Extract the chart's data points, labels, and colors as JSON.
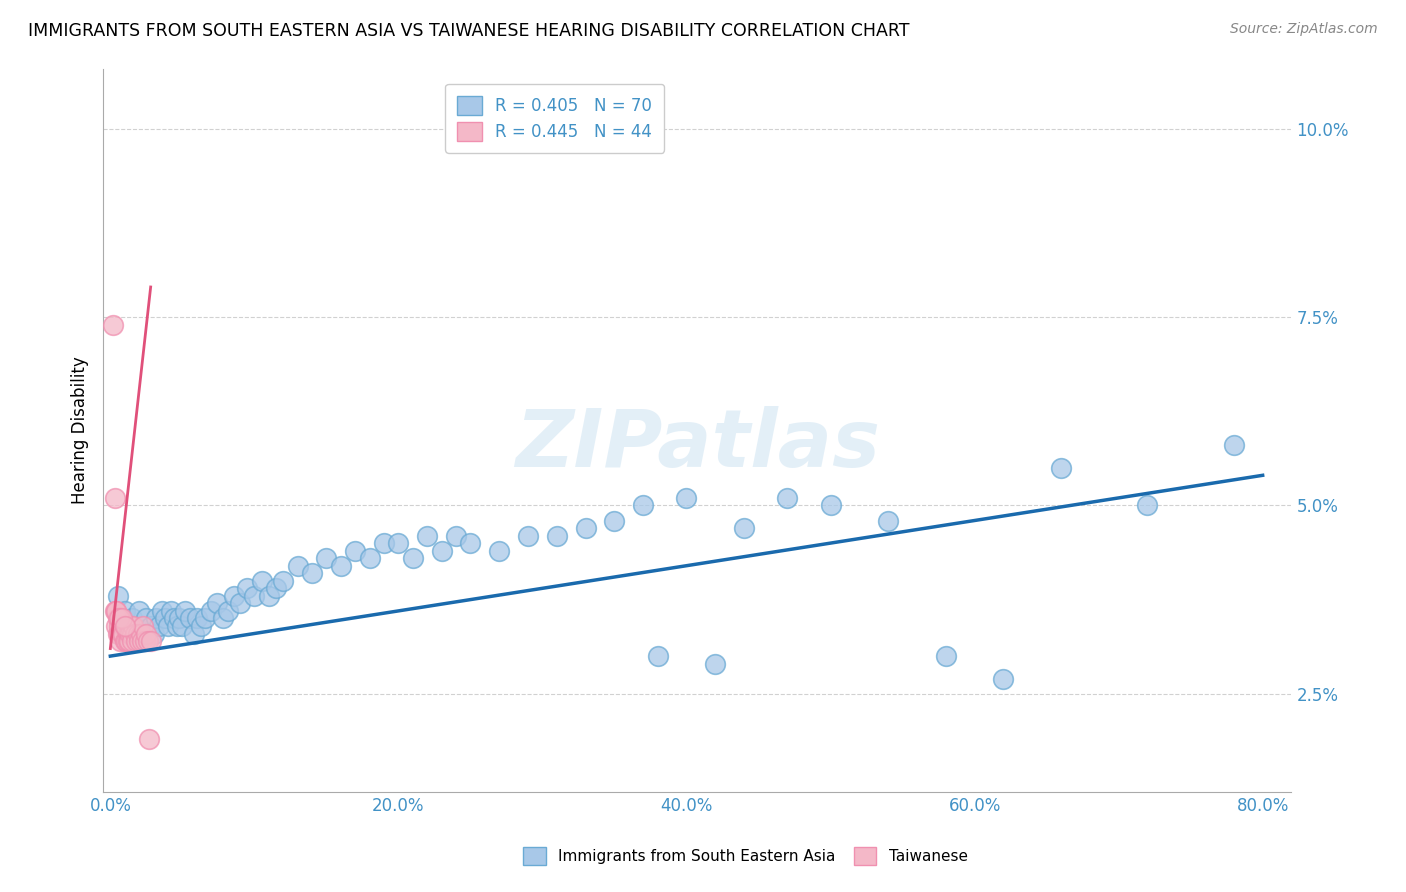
{
  "title": "IMMIGRANTS FROM SOUTH EASTERN ASIA VS TAIWANESE HEARING DISABILITY CORRELATION CHART",
  "source": "Source: ZipAtlas.com",
  "ylabel": "Hearing Disability",
  "watermark": "ZIPatlas",
  "legend_blue_r": "R = 0.405",
  "legend_blue_n": "N = 70",
  "legend_pink_r": "R = 0.445",
  "legend_pink_n": "N = 44",
  "blue_color": "#a8c8e8",
  "pink_color": "#f4b8c8",
  "blue_edge_color": "#6aaad4",
  "pink_edge_color": "#f090b0",
  "blue_line_color": "#1a6aad",
  "pink_line_color": "#e0507a",
  "legend_text_color": "#4292c6",
  "tick_color": "#4292c6",
  "xlim": [
    -0.005,
    0.82
  ],
  "ylim": [
    0.012,
    0.108
  ],
  "xticks": [
    0.0,
    0.2,
    0.4,
    0.6,
    0.8
  ],
  "xtick_labels": [
    "0.0%",
    "20.0%",
    "40.0%",
    "60.0%",
    "80.0%"
  ],
  "yticks": [
    0.025,
    0.05,
    0.075,
    0.1
  ],
  "ytick_labels": [
    "2.5%",
    "5.0%",
    "7.5%",
    "10.0%"
  ],
  "blue_scatter_x": [
    0.005,
    0.008,
    0.01,
    0.012,
    0.015,
    0.018,
    0.02,
    0.022,
    0.025,
    0.028,
    0.03,
    0.032,
    0.034,
    0.036,
    0.038,
    0.04,
    0.042,
    0.044,
    0.046,
    0.048,
    0.05,
    0.052,
    0.055,
    0.058,
    0.06,
    0.063,
    0.066,
    0.07,
    0.074,
    0.078,
    0.082,
    0.086,
    0.09,
    0.095,
    0.1,
    0.105,
    0.11,
    0.115,
    0.12,
    0.13,
    0.14,
    0.15,
    0.16,
    0.17,
    0.18,
    0.19,
    0.2,
    0.21,
    0.22,
    0.23,
    0.24,
    0.25,
    0.27,
    0.29,
    0.31,
    0.33,
    0.35,
    0.37,
    0.38,
    0.4,
    0.42,
    0.44,
    0.47,
    0.5,
    0.54,
    0.58,
    0.62,
    0.66,
    0.72,
    0.78
  ],
  "blue_scatter_y": [
    0.038,
    0.034,
    0.036,
    0.033,
    0.035,
    0.034,
    0.036,
    0.033,
    0.035,
    0.034,
    0.033,
    0.035,
    0.034,
    0.036,
    0.035,
    0.034,
    0.036,
    0.035,
    0.034,
    0.035,
    0.034,
    0.036,
    0.035,
    0.033,
    0.035,
    0.034,
    0.035,
    0.036,
    0.037,
    0.035,
    0.036,
    0.038,
    0.037,
    0.039,
    0.038,
    0.04,
    0.038,
    0.039,
    0.04,
    0.042,
    0.041,
    0.043,
    0.042,
    0.044,
    0.043,
    0.045,
    0.045,
    0.043,
    0.046,
    0.044,
    0.046,
    0.045,
    0.044,
    0.046,
    0.046,
    0.047,
    0.048,
    0.05,
    0.03,
    0.051,
    0.029,
    0.047,
    0.051,
    0.05,
    0.048,
    0.03,
    0.027,
    0.055,
    0.05,
    0.058
  ],
  "pink_scatter_x": [
    0.002,
    0.003,
    0.003,
    0.004,
    0.004,
    0.005,
    0.005,
    0.006,
    0.006,
    0.007,
    0.007,
    0.008,
    0.008,
    0.009,
    0.009,
    0.01,
    0.01,
    0.011,
    0.011,
    0.012,
    0.012,
    0.013,
    0.013,
    0.014,
    0.014,
    0.015,
    0.015,
    0.016,
    0.017,
    0.018,
    0.019,
    0.02,
    0.021,
    0.022,
    0.023,
    0.024,
    0.025,
    0.026,
    0.027,
    0.028,
    0.004,
    0.006,
    0.008,
    0.01
  ],
  "pink_scatter_y": [
    0.074,
    0.051,
    0.036,
    0.036,
    0.034,
    0.035,
    0.033,
    0.034,
    0.033,
    0.035,
    0.032,
    0.034,
    0.033,
    0.034,
    0.033,
    0.034,
    0.032,
    0.034,
    0.032,
    0.033,
    0.032,
    0.033,
    0.032,
    0.034,
    0.033,
    0.033,
    0.032,
    0.034,
    0.033,
    0.032,
    0.033,
    0.032,
    0.033,
    0.032,
    0.034,
    0.032,
    0.033,
    0.032,
    0.019,
    0.032,
    0.036,
    0.035,
    0.035,
    0.034
  ],
  "blue_line_x": [
    0.0,
    0.8
  ],
  "blue_line_y": [
    0.03,
    0.054
  ],
  "pink_line_x": [
    0.0,
    0.028
  ],
  "pink_line_y": [
    0.031,
    0.079
  ]
}
